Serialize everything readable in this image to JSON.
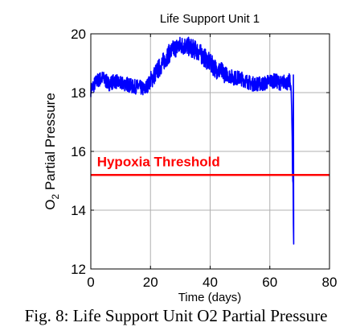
{
  "caption": "Fig. 8: Life Support Unit O2 Partial Pressure",
  "chart_data": {
    "type": "line",
    "title": "Life Support Unit 1",
    "xlabel": "Time (days)",
    "ylabel": {
      "prefix": "O",
      "subscript": "2",
      "suffix": " Partial Pressure"
    },
    "xlim": [
      0,
      80
    ],
    "ylim": [
      12,
      20
    ],
    "xticks": [
      0,
      20,
      40,
      60,
      80
    ],
    "yticks": [
      12,
      14,
      16,
      18,
      20
    ],
    "grid": true,
    "series": [
      {
        "color": "#0000ff",
        "x": [
          0,
          2,
          4,
          6,
          8,
          10,
          12,
          14,
          16,
          18,
          20,
          22,
          24,
          26,
          28,
          30,
          32,
          34,
          36,
          38,
          40,
          42,
          44,
          46,
          48,
          50,
          52,
          54,
          56,
          58,
          60,
          62,
          64,
          65,
          66,
          66.5,
          67,
          67.3,
          67.5,
          67.6,
          67.8,
          67.9,
          68
        ],
        "y": [
          18.1,
          18.4,
          18.5,
          18.3,
          18.4,
          18.3,
          18.3,
          18.2,
          18.2,
          18.1,
          18.4,
          18.7,
          19.0,
          19.3,
          19.5,
          19.6,
          19.6,
          19.5,
          19.4,
          19.2,
          19.0,
          18.8,
          18.7,
          18.6,
          18.5,
          18.5,
          18.4,
          18.3,
          18.3,
          18.3,
          18.4,
          18.4,
          18.3,
          18.4,
          18.3,
          18.4,
          18.3,
          17.5,
          16.5,
          15.3,
          14.9,
          13.5,
          12.85
        ],
        "noise_amplitude": 0.25
      },
      {
        "name": "Hypoxia Threshold",
        "color": "#ff0000",
        "x": [
          0,
          80
        ],
        "y": [
          15.2,
          15.2
        ]
      }
    ],
    "annotations": [
      {
        "text": "Hypoxia Threshold",
        "x": 1,
        "y": 15.5,
        "color": "#ff0000"
      }
    ]
  }
}
